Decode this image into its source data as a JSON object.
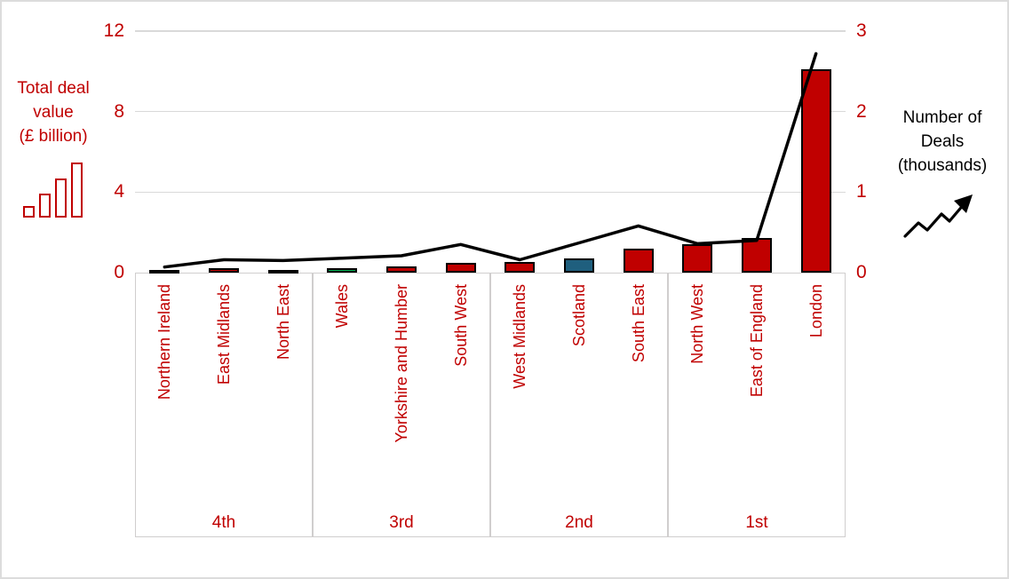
{
  "frame": {
    "background": "#FFFFFF",
    "border_color": "#DCDCDC"
  },
  "chart_data": {
    "type": "combo-bar-line",
    "categories": [
      "Northern Ireland",
      "East Midlands",
      "North East",
      "Wales",
      "Yorkshire and Humber",
      "South West",
      "West Midlands",
      "Scotland",
      "South East",
      "North West",
      "East of England",
      "London"
    ],
    "groups": [
      {
        "label": "4th",
        "categories_span": 3
      },
      {
        "label": "3rd",
        "categories_span": 3
      },
      {
        "label": "2nd",
        "categories_span": 3
      },
      {
        "label": "1st",
        "categories_span": 3
      }
    ],
    "bar_series": {
      "name": "Total deal value (£ billion)",
      "axis": "left",
      "values": [
        0.1,
        0.2,
        0.15,
        0.2,
        0.3,
        0.5,
        0.55,
        0.7,
        1.2,
        1.4,
        1.7,
        10.1
      ],
      "bar_colors": [
        "#C00000",
        "#C00000",
        "#C00000",
        "#00B050",
        "#C00000",
        "#C00000",
        "#C00000",
        "#1F5F7E",
        "#C00000",
        "#C00000",
        "#C00000",
        "#C00000"
      ],
      "outline_color": "#000000"
    },
    "line_series": {
      "name": "Number of Deals (thousands)",
      "axis": "right",
      "values": [
        0.07,
        0.16,
        0.15,
        0.18,
        0.21,
        0.35,
        0.16,
        0.37,
        0.58,
        0.36,
        0.4,
        2.72
      ],
      "color": "#000000"
    },
    "left_axis": {
      "title_lines": [
        "Total deal",
        "value",
        "(£ billion)"
      ],
      "tick_labels": [
        "12",
        "8",
        "4",
        "0"
      ],
      "tick_values": [
        12,
        8,
        4,
        0
      ],
      "range": [
        0,
        12
      ],
      "label_color": "#C00000"
    },
    "right_axis": {
      "title_lines": [
        "Number of",
        "Deals",
        "(thousands)"
      ],
      "tick_labels": [
        "3",
        "2",
        "1",
        "0"
      ],
      "tick_values": [
        3,
        2,
        1,
        0
      ],
      "range": [
        0,
        3
      ],
      "label_color": "#C00000",
      "title_color": "#000000"
    },
    "grid": {
      "color": "#D9D9D9",
      "values": [
        4,
        8,
        12
      ]
    },
    "category_label_color": "#C00000",
    "group_label_color": "#C00000",
    "legend": "none"
  }
}
